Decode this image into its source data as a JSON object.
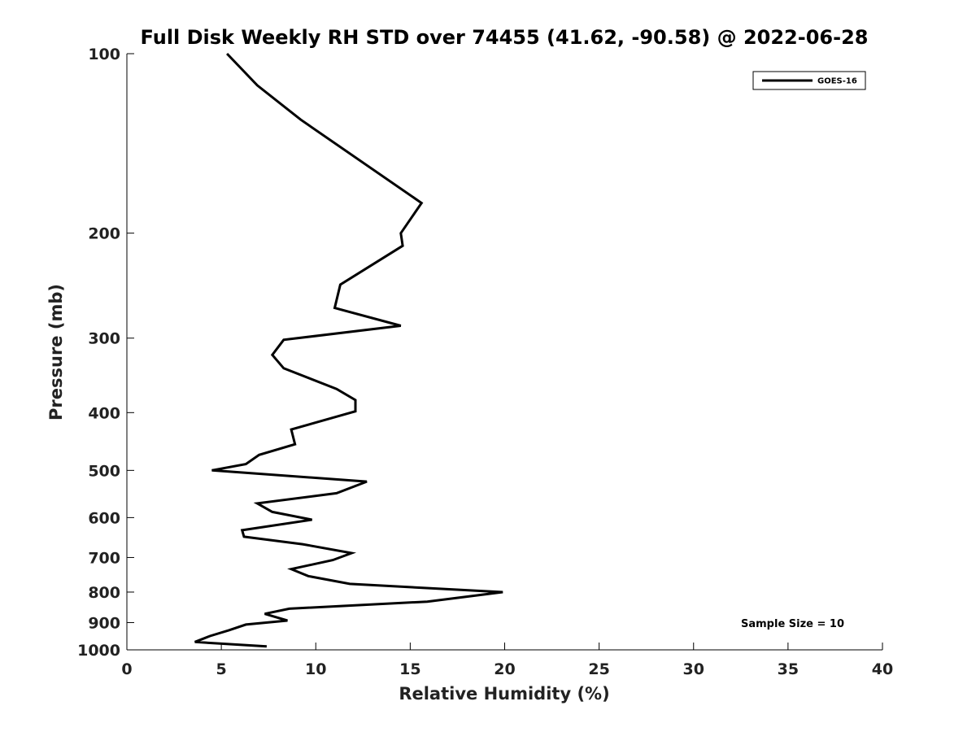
{
  "chart_data": {
    "type": "line",
    "title": "Full Disk Weekly RH STD over 74455 (41.62, -90.58) @ 2022-06-28",
    "xlabel": "Relative Humidity (%)",
    "ylabel": "Pressure (mb)",
    "xlim": [
      0,
      40
    ],
    "ylim": [
      100,
      1000
    ],
    "yscale": "log",
    "yreversed": true,
    "xticks": [
      0,
      5,
      10,
      15,
      20,
      25,
      30,
      35,
      40
    ],
    "yticks": [
      100,
      200,
      300,
      400,
      500,
      600,
      700,
      800,
      900,
      1000
    ],
    "xtick_labels": [
      "0",
      "5",
      "10",
      "15",
      "20",
      "25",
      "30",
      "35",
      "40"
    ],
    "ytick_labels": [
      "100",
      "200",
      "300",
      "400",
      "500",
      "600",
      "700",
      "800",
      "900",
      "1000"
    ],
    "grid": false,
    "legend_position": "top-right",
    "line_color": "#000000",
    "annotation": "Sample Size = 10",
    "series": [
      {
        "name": "GOES-16",
        "x": [
          5.3,
          6.9,
          9.2,
          15.6,
          14.5,
          14.6,
          11.3,
          11.0,
          14.5,
          8.3,
          7.7,
          8.3,
          11.1,
          12.1,
          12.1,
          8.7,
          8.9,
          7.0,
          6.3,
          4.5,
          12.7,
          11.1,
          6.9,
          7.7,
          9.8,
          6.1,
          6.2,
          9.3,
          11.9,
          10.9,
          8.7,
          9.6,
          11.8,
          19.9,
          15.9,
          8.6,
          7.3,
          8.5,
          6.3,
          5.4,
          4.4,
          3.6,
          7.4
        ],
        "y": [
          100,
          113,
          129,
          178,
          200,
          210,
          244,
          267,
          286,
          302,
          320,
          337,
          365,
          381,
          398,
          427,
          452,
          471,
          488,
          500,
          522,
          546,
          568,
          587,
          605,
          630,
          646,
          665,
          688,
          707,
          732,
          752,
          775,
          800,
          830,
          853,
          870,
          893,
          907,
          927,
          948,
          970,
          987
        ]
      }
    ]
  }
}
